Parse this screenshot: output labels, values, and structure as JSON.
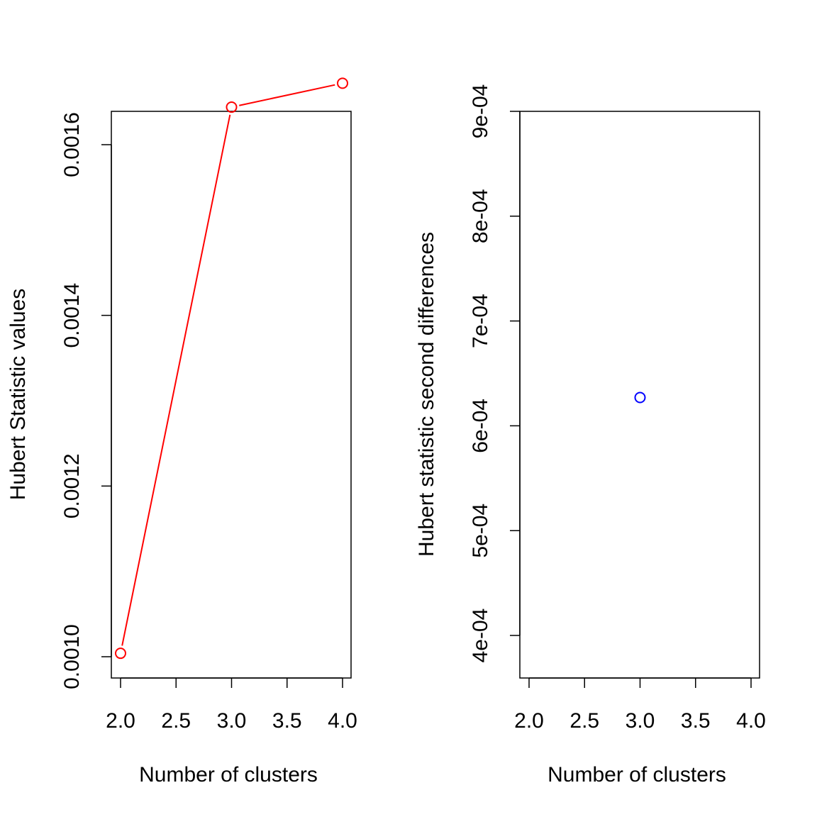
{
  "chart_data": [
    {
      "type": "line",
      "title": "",
      "xlabel": "Number of clusters",
      "ylabel": "Hubert Statistic values",
      "xlim": [
        2.0,
        4.0
      ],
      "ylim": [
        0.001,
        0.00167
      ],
      "x_ticks": [
        "2.0",
        "2.5",
        "3.0",
        "3.5",
        "4.0"
      ],
      "y_ticks": [
        "0.0010",
        "0.0012",
        "0.0014",
        "0.0016"
      ],
      "series": [
        {
          "color": "#ff0000",
          "marker": "open-circle",
          "points": [
            {
              "x": 2,
              "y": 0.001004
            },
            {
              "x": 3,
              "y": 0.001644
            },
            {
              "x": 4,
              "y": 0.001672
            }
          ]
        }
      ],
      "grid": false,
      "legend": "none"
    },
    {
      "type": "scatter",
      "title": "",
      "xlabel": "Number of clusters",
      "ylabel": "Hubert statistic second differences",
      "xlim": [
        2.0,
        4.0
      ],
      "ylim": [
        0.00036,
        0.0009
      ],
      "x_ticks": [
        "2.0",
        "2.5",
        "3.0",
        "3.5",
        "4.0"
      ],
      "y_ticks": [
        "4e-04",
        "5e-04",
        "6e-04",
        "7e-04",
        "8e-04",
        "9e-04"
      ],
      "series": [
        {
          "color": "#0000ff",
          "marker": "open-circle",
          "points": [
            {
              "x": 3,
              "y": 0.000627
            }
          ]
        }
      ],
      "grid": false,
      "legend": "none"
    }
  ]
}
